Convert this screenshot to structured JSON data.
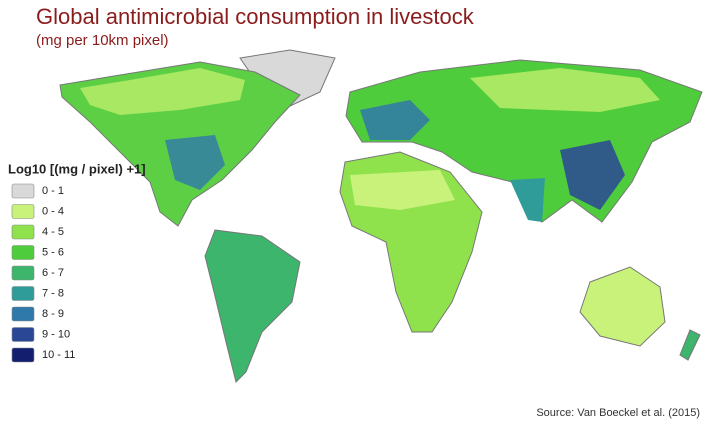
{
  "title": "Global antimicrobial consumption in livestock",
  "subtitle": "(mg per 10km pixel)",
  "legend": {
    "title": "Log10 [(mg / pixel) +1]",
    "items": [
      {
        "label": "0 - 1",
        "color": "#d9d9d9"
      },
      {
        "label": "0 - 4",
        "color": "#c9f27a"
      },
      {
        "label": "4 - 5",
        "color": "#8fe24c"
      },
      {
        "label": "5 - 6",
        "color": "#4fcc3c"
      },
      {
        "label": "6 - 7",
        "color": "#3db56c"
      },
      {
        "label": "7 - 8",
        "color": "#2f9c9a"
      },
      {
        "label": "8 - 9",
        "color": "#2f78aa"
      },
      {
        "label": "9 - 10",
        "color": "#2a4796"
      },
      {
        "label": "10 - 11",
        "color": "#141e6e"
      }
    ]
  },
  "source": "Source: Van Boeckel et al. (2015)"
}
